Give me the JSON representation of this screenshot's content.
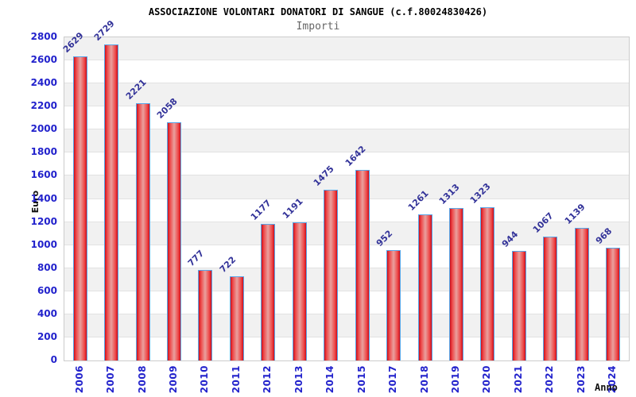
{
  "chart_data": {
    "type": "bar",
    "title": "ASSOCIAZIONE VOLONTARI DONATORI DI SANGUE (c.f.80024830426)",
    "subtitle": "Importi",
    "xlabel": "Anno",
    "ylabel": "Euro",
    "categories": [
      "2006",
      "2007",
      "2008",
      "2009",
      "2010",
      "2011",
      "2012",
      "2013",
      "2014",
      "2015",
      "2017",
      "2018",
      "2019",
      "2020",
      "2021",
      "2022",
      "2023",
      "2024"
    ],
    "values": [
      2629,
      2729,
      2221,
      2058,
      777,
      722,
      1177,
      1191,
      1475,
      1642,
      952,
      1261,
      1313,
      1323,
      944,
      1067,
      1139,
      968
    ],
    "ylim": [
      0,
      2800
    ],
    "ytick_step": 200,
    "grid": "alternating-horizontal-bands",
    "legend": "none",
    "bar_value_labels_rotation_deg": -45,
    "x_tick_rotation_deg": -90
  },
  "colors": {
    "title": "#000000",
    "subtitle": "#666666",
    "axis_tick_label": "#2222cc",
    "value_label": "#333399",
    "axis_title": "#111111",
    "bar_border": "#58a6e8",
    "bar_gradient": [
      "#cf0d1a",
      "#ee4a4a",
      "#e9a09e",
      "#ee4a4a",
      "#cf0d1a"
    ],
    "band_gray": "#f1f1f1",
    "band_white": "#ffffff",
    "plot_border": "#cccccc",
    "gridline": "#e2e2e2"
  }
}
